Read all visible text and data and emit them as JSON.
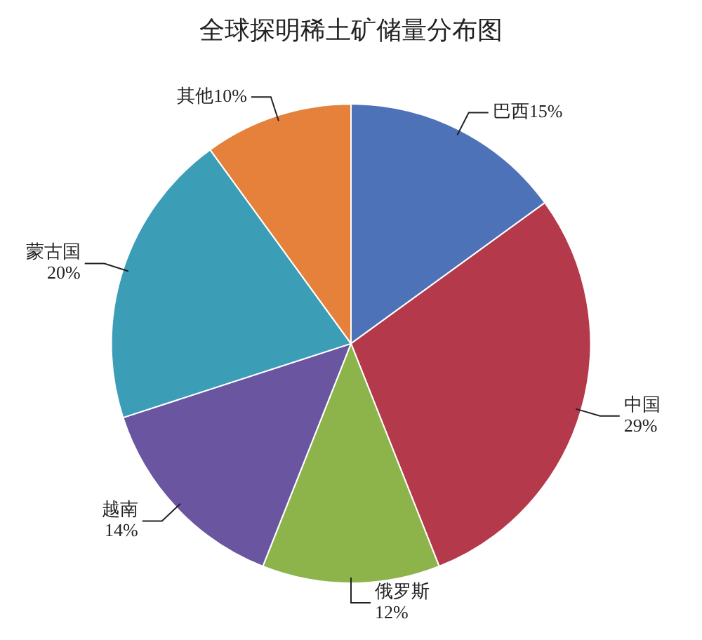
{
  "chart_data": {
    "type": "pie",
    "title": "全球探明稀土矿储量分布图",
    "categories": [
      "巴西",
      "中国",
      "俄罗斯",
      "越南",
      "蒙古国",
      "其他"
    ],
    "values": [
      15,
      29,
      12,
      14,
      20,
      10
    ],
    "value_labels": [
      "15%",
      "29%",
      "12%",
      "14%",
      "20%",
      "10%"
    ],
    "colors": [
      "#4e72b8",
      "#b3394b",
      "#8cb44b",
      "#6a56a0",
      "#3c9db6",
      "#e5813b"
    ],
    "legend": false
  }
}
